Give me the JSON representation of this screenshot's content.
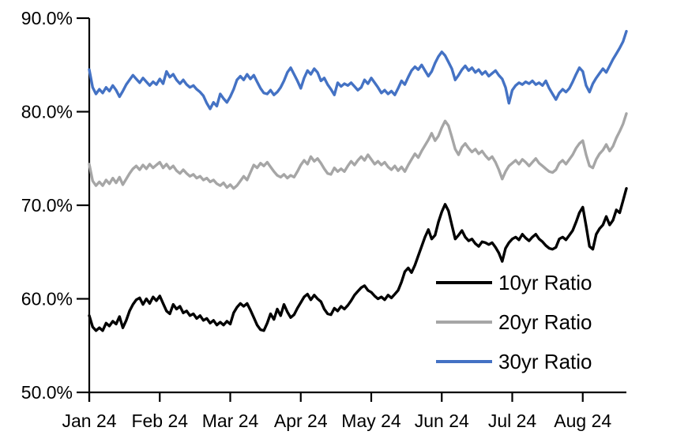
{
  "chart_data": {
    "type": "line",
    "title": "",
    "grid": false,
    "x_axis": {
      "label": "",
      "tick_labels": [
        "Jan 24",
        "Feb 24",
        "Mar 24",
        "Apr 24",
        "May 24",
        "Jun 24",
        "Jul 24",
        "Aug 24"
      ],
      "tick_indices": [
        0,
        21,
        42,
        63,
        84,
        105,
        126,
        147
      ],
      "note": "daily observations, Jan 2024 through ~Aug 20 2024"
    },
    "y_axis": {
      "label": "",
      "unit": "percent",
      "min": 50,
      "max": 90,
      "tick_values": [
        90,
        80,
        70,
        60,
        50
      ],
      "tick_labels": [
        "90.0%",
        "80.0%",
        "70.0%",
        "60.0%",
        "50.0%"
      ]
    },
    "legend": {
      "position": "lower-right",
      "entries": [
        "10yr Ratio",
        "20yr Ratio",
        "30yr Ratio"
      ]
    },
    "series": [
      {
        "name": "10yr Ratio",
        "color": "#000000",
        "values": [
          58.2,
          57.0,
          56.6,
          56.9,
          56.6,
          57.4,
          57.1,
          57.6,
          57.3,
          58.1,
          56.9,
          57.7,
          58.7,
          59.4,
          59.9,
          60.1,
          59.4,
          60.0,
          59.5,
          60.2,
          59.8,
          60.3,
          59.5,
          58.7,
          58.4,
          59.4,
          58.9,
          59.2,
          58.5,
          58.7,
          58.2,
          58.4,
          57.9,
          58.2,
          57.7,
          57.9,
          57.4,
          57.7,
          57.2,
          57.5,
          57.2,
          57.6,
          57.3,
          58.5,
          59.1,
          59.5,
          59.2,
          59.5,
          58.8,
          58.0,
          57.2,
          56.7,
          56.6,
          57.4,
          58.4,
          57.8,
          58.9,
          58.2,
          59.4,
          58.6,
          58.0,
          58.3,
          59.0,
          59.6,
          60.2,
          60.5,
          59.9,
          60.4,
          60.0,
          59.7,
          58.9,
          58.4,
          58.3,
          59.0,
          58.7,
          59.2,
          58.9,
          59.3,
          59.8,
          60.4,
          60.8,
          61.2,
          61.4,
          60.9,
          60.7,
          60.3,
          60.0,
          60.2,
          59.9,
          60.4,
          60.1,
          60.5,
          60.9,
          61.8,
          62.9,
          63.3,
          62.8,
          63.6,
          64.6,
          65.6,
          66.6,
          67.4,
          66.4,
          66.8,
          68.2,
          69.3,
          70.1,
          69.4,
          67.9,
          66.4,
          66.8,
          67.3,
          66.6,
          66.2,
          66.4,
          65.9,
          65.6,
          66.1,
          66.0,
          65.8,
          66.0,
          65.5,
          64.9,
          64.0,
          65.4,
          66.0,
          66.4,
          66.6,
          66.3,
          66.9,
          66.5,
          66.2,
          66.6,
          66.9,
          66.4,
          66.1,
          65.7,
          65.4,
          65.3,
          65.5,
          66.4,
          66.6,
          66.3,
          66.8,
          67.3,
          68.2,
          69.2,
          69.8,
          67.8,
          65.6,
          65.3,
          66.9,
          67.5,
          67.9,
          68.8,
          67.9,
          68.4,
          69.5,
          69.2,
          70.5,
          71.8
        ]
      },
      {
        "name": "20yr Ratio",
        "color": "#A6A6A6",
        "values": [
          74.4,
          72.6,
          72.1,
          72.5,
          72.1,
          72.7,
          72.3,
          72.9,
          72.4,
          73.0,
          72.2,
          72.8,
          73.4,
          73.9,
          74.2,
          73.8,
          74.3,
          73.9,
          74.4,
          74.0,
          74.3,
          74.6,
          74.0,
          74.4,
          73.9,
          74.2,
          73.7,
          73.4,
          73.8,
          73.4,
          73.1,
          73.3,
          72.9,
          73.1,
          72.7,
          72.9,
          72.5,
          72.7,
          72.3,
          72.1,
          72.4,
          71.9,
          72.2,
          71.8,
          72.1,
          72.6,
          73.1,
          72.7,
          73.5,
          74.3,
          74.0,
          74.5,
          74.2,
          74.6,
          74.1,
          73.6,
          73.2,
          73.0,
          73.3,
          72.9,
          73.2,
          73.0,
          73.6,
          74.3,
          74.8,
          74.4,
          75.2,
          74.7,
          75.0,
          74.5,
          73.9,
          73.4,
          73.3,
          74.0,
          73.6,
          73.9,
          73.6,
          74.2,
          74.7,
          74.3,
          74.8,
          75.2,
          74.8,
          75.4,
          74.9,
          74.4,
          74.7,
          74.3,
          74.6,
          74.1,
          73.8,
          74.2,
          73.7,
          74.1,
          73.6,
          74.3,
          74.9,
          75.5,
          75.1,
          75.8,
          76.4,
          77.0,
          77.7,
          76.9,
          77.4,
          78.3,
          79.0,
          78.5,
          77.3,
          76.0,
          75.4,
          76.2,
          76.6,
          76.1,
          75.7,
          76.0,
          75.5,
          75.8,
          75.3,
          74.9,
          75.2,
          74.6,
          73.8,
          72.8,
          73.6,
          74.2,
          74.5,
          74.8,
          74.4,
          74.9,
          74.6,
          74.2,
          74.6,
          75.0,
          74.5,
          74.2,
          73.9,
          73.6,
          73.5,
          73.8,
          74.5,
          74.8,
          74.4,
          74.9,
          75.4,
          76.1,
          76.6,
          76.9,
          75.4,
          74.2,
          74.0,
          74.9,
          75.5,
          75.9,
          76.5,
          75.8,
          76.3,
          77.2,
          77.9,
          78.7,
          79.8
        ]
      },
      {
        "name": "30yr Ratio",
        "color": "#4472C4",
        "values": [
          84.5,
          82.6,
          81.9,
          82.4,
          82.0,
          82.6,
          82.2,
          82.8,
          82.3,
          81.6,
          82.2,
          82.9,
          83.4,
          83.9,
          83.5,
          83.1,
          83.6,
          83.2,
          82.8,
          83.2,
          82.9,
          83.5,
          83.0,
          84.3,
          83.7,
          84.0,
          83.4,
          83.0,
          83.4,
          82.9,
          82.6,
          82.8,
          82.4,
          82.1,
          81.7,
          80.9,
          80.3,
          81.0,
          80.6,
          81.9,
          81.4,
          81.0,
          81.6,
          82.4,
          83.4,
          83.8,
          83.4,
          84.0,
          83.5,
          83.9,
          83.2,
          82.5,
          82.0,
          81.9,
          82.3,
          81.8,
          82.1,
          82.6,
          83.3,
          84.2,
          84.7,
          84.0,
          83.3,
          82.5,
          83.6,
          84.4,
          84.0,
          84.6,
          84.2,
          83.3,
          83.6,
          82.9,
          82.4,
          81.8,
          83.1,
          82.7,
          83.0,
          82.8,
          83.1,
          82.7,
          82.3,
          82.6,
          83.4,
          83.0,
          83.6,
          83.1,
          82.6,
          82.0,
          82.3,
          81.9,
          82.2,
          81.8,
          82.5,
          83.3,
          82.9,
          83.7,
          84.4,
          84.8,
          84.5,
          85.0,
          84.4,
          83.8,
          84.3,
          85.2,
          85.9,
          86.4,
          86.0,
          85.3,
          84.6,
          83.4,
          83.9,
          84.5,
          84.9,
          84.4,
          84.7,
          84.2,
          84.5,
          84.0,
          84.3,
          83.8,
          84.1,
          84.4,
          83.9,
          83.5,
          82.6,
          80.9,
          82.3,
          82.8,
          83.1,
          82.9,
          83.2,
          83.0,
          83.3,
          82.9,
          83.1,
          82.8,
          83.3,
          82.5,
          81.9,
          81.3,
          82.0,
          82.4,
          82.1,
          82.5,
          83.2,
          84.0,
          84.7,
          84.3,
          82.8,
          82.1,
          83.0,
          83.6,
          84.1,
          84.6,
          84.2,
          84.9,
          85.6,
          86.2,
          86.8,
          87.5,
          88.6
        ]
      }
    ]
  }
}
